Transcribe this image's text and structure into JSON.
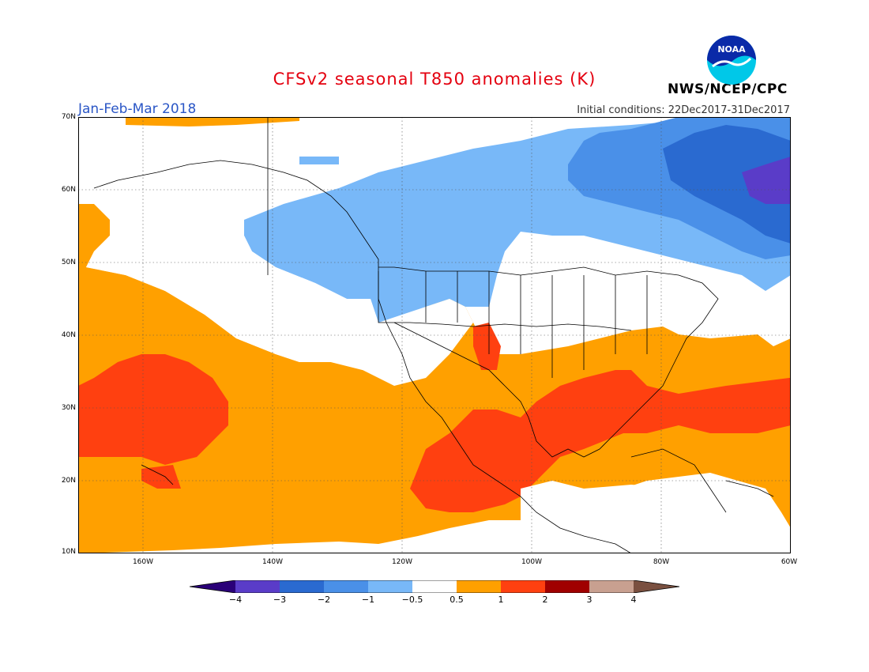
{
  "header": {
    "title": "CFSv2 seasonal T850 anomalies (K)",
    "period": "Jan-Feb-Mar 2018",
    "initial_conditions": "Initial conditions: 22Dec2017-31Dec2017",
    "agency": "NWS/NCEP/CPC",
    "logo_icon": "noaa-logo-icon",
    "logo_text": "NOAA"
  },
  "map": {
    "lat_labels": [
      "70N",
      "60N",
      "50N",
      "40N",
      "30N",
      "20N",
      "10N"
    ],
    "lon_labels": [
      "160W",
      "140W",
      "120W",
      "100W",
      "80W",
      "60W"
    ]
  },
  "colorbar": {
    "labels": [
      "−4",
      "−3",
      "−2",
      "−1",
      "−0.5",
      "0.5",
      "1",
      "2",
      "3",
      "4"
    ],
    "colors": {
      "below_-4": "#2a0078",
      "-4_-3": "#5a3cc8",
      "-3_-2": "#2a6ad0",
      "-2_-1": "#4a90e8",
      "-1_-0.5": "#78b8f8",
      "-0.5_0.5": "#ffffff",
      "0.5_1": "#ffa000",
      "1_2": "#ff4010",
      "2_3": "#a00000",
      "3_4": "#c8a090",
      "above_4": "#7a5040"
    }
  }
}
